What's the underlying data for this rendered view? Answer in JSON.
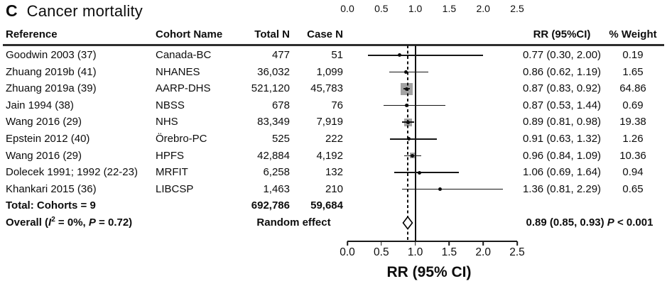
{
  "title": {
    "panel": "C",
    "text": "Cancer mortality"
  },
  "table": {
    "columns": {
      "reference": "Reference",
      "cohort": "Cohort Name",
      "total_n": "Total N",
      "case_n": "Case N",
      "rr": "RR (95%CI)",
      "weight": "% Weight"
    },
    "rows": [
      {
        "reference": "Goodwin 2003 (37)",
        "cohort": "Canada-BC",
        "total_n": "477",
        "case_n": "51",
        "rr_text": "0.77 (0.30, 2.00)",
        "weight": "0.19"
      },
      {
        "reference": "Zhuang 2019b (41)",
        "cohort": "NHANES",
        "total_n": "36,032",
        "case_n": "1,099",
        "rr_text": "0.86 (0.62, 1.19)",
        "weight": "1.65"
      },
      {
        "reference": "Zhuang 2019a (39)",
        "cohort": "AARP-DHS",
        "total_n": "521,120",
        "case_n": "45,783",
        "rr_text": "0.87 (0.83, 0.92)",
        "weight": "64.86"
      },
      {
        "reference": "Jain 1994 (38)",
        "cohort": "NBSS",
        "total_n": "678",
        "case_n": "76",
        "rr_text": "0.87 (0.53, 1.44)",
        "weight": "0.69"
      },
      {
        "reference": "Wang 2016 (29)",
        "cohort": "NHS",
        "total_n": "83,349",
        "case_n": "7,919",
        "rr_text": "0.89 (0.81, 0.98)",
        "weight": "19.38"
      },
      {
        "reference": "Epstein 2012 (40)",
        "cohort": "Örebro-PC",
        "total_n": "525",
        "case_n": "222",
        "rr_text": "0.91 (0.63, 1.32)",
        "weight": "1.26"
      },
      {
        "reference": "Wang 2016 (29)",
        "cohort": "HPFS",
        "total_n": "42,884",
        "case_n": "4,192",
        "rr_text": "0.96 (0.84, 1.09)",
        "weight": "10.36"
      },
      {
        "reference": "Dolecek 1991; 1992 (22-23)",
        "cohort": "MRFIT",
        "total_n": "6,258",
        "case_n": "132",
        "rr_text": "1.06 (0.69, 1.64)",
        "weight": "0.94"
      },
      {
        "reference": "Khankari 2015 (36)",
        "cohort": "LIBCSP",
        "total_n": "1,463",
        "case_n": "210",
        "rr_text": "1.36 (0.81, 2.29)",
        "weight": "0.65"
      }
    ],
    "total_row": {
      "label": "Total: Cohorts = 9",
      "total_n": "692,786",
      "case_n": "59,684"
    },
    "overall_row": {
      "label_p1": "Overall (",
      "label_i": "I",
      "label_sup": "2",
      "label_p2": " = 0%, ",
      "label_p": "P",
      "label_p3": " = 0.72)",
      "method": "Random effect",
      "rr_text": "0.89 (0.85, 0.93)",
      "p_label": "P",
      "p_value": " < 0.001"
    }
  },
  "axis": {
    "tick_labels": [
      "0.0",
      "0.5",
      "1.0",
      "1.5",
      "2.0",
      "2.5"
    ],
    "xlabel": "RR (95% CI)"
  },
  "chart_data": {
    "type": "forest",
    "title": "C Cancer mortality",
    "xlabel": "RR (95% CI)",
    "xlim": [
      0,
      2.5
    ],
    "x_ticks": [
      0,
      0.5,
      1.0,
      1.5,
      2.0,
      2.5
    ],
    "reference_line": 1.0,
    "overall_dashed_line": 0.89,
    "studies": [
      {
        "label": "Goodwin 2003 (37)",
        "cohort": "Canada-BC",
        "total_n": 477,
        "case_n": 51,
        "rr": 0.77,
        "ci_low": 0.3,
        "ci_high": 2.0,
        "weight_pct": 0.19
      },
      {
        "label": "Zhuang 2019b (41)",
        "cohort": "NHANES",
        "total_n": 36032,
        "case_n": 1099,
        "rr": 0.86,
        "ci_low": 0.62,
        "ci_high": 1.19,
        "weight_pct": 1.65
      },
      {
        "label": "Zhuang 2019a (39)",
        "cohort": "AARP-DHS",
        "total_n": 521120,
        "case_n": 45783,
        "rr": 0.87,
        "ci_low": 0.83,
        "ci_high": 0.92,
        "weight_pct": 64.86
      },
      {
        "label": "Jain 1994 (38)",
        "cohort": "NBSS",
        "total_n": 678,
        "case_n": 76,
        "rr": 0.87,
        "ci_low": 0.53,
        "ci_high": 1.44,
        "weight_pct": 0.69
      },
      {
        "label": "Wang 2016 (29)",
        "cohort": "NHS",
        "total_n": 83349,
        "case_n": 7919,
        "rr": 0.89,
        "ci_low": 0.81,
        "ci_high": 0.98,
        "weight_pct": 19.38
      },
      {
        "label": "Epstein 2012 (40)",
        "cohort": "Örebro-PC",
        "total_n": 525,
        "case_n": 222,
        "rr": 0.91,
        "ci_low": 0.63,
        "ci_high": 1.32,
        "weight_pct": 1.26
      },
      {
        "label": "Wang 2016 (29)",
        "cohort": "HPFS",
        "total_n": 42884,
        "case_n": 4192,
        "rr": 0.96,
        "ci_low": 0.84,
        "ci_high": 1.09,
        "weight_pct": 10.36
      },
      {
        "label": "Dolecek 1991; 1992 (22-23)",
        "cohort": "MRFIT",
        "total_n": 6258,
        "case_n": 132,
        "rr": 1.06,
        "ci_low": 0.69,
        "ci_high": 1.64,
        "weight_pct": 0.94
      },
      {
        "label": "Khankari 2015 (36)",
        "cohort": "LIBCSP",
        "total_n": 1463,
        "case_n": 210,
        "rr": 1.36,
        "ci_low": 0.81,
        "ci_high": 2.29,
        "weight_pct": 0.65
      }
    ],
    "overall": {
      "model": "Random effect",
      "cohorts": 9,
      "total_n": 692786,
      "case_n": 59684,
      "rr": 0.89,
      "ci_low": 0.85,
      "ci_high": 0.93,
      "p": "P < 0.001",
      "heterogeneity_I2": "0%",
      "heterogeneity_P": "0.72"
    },
    "colors": {
      "weight_square": "#a3a3a3",
      "line": "#111111",
      "text": "#0d0d0d"
    }
  }
}
